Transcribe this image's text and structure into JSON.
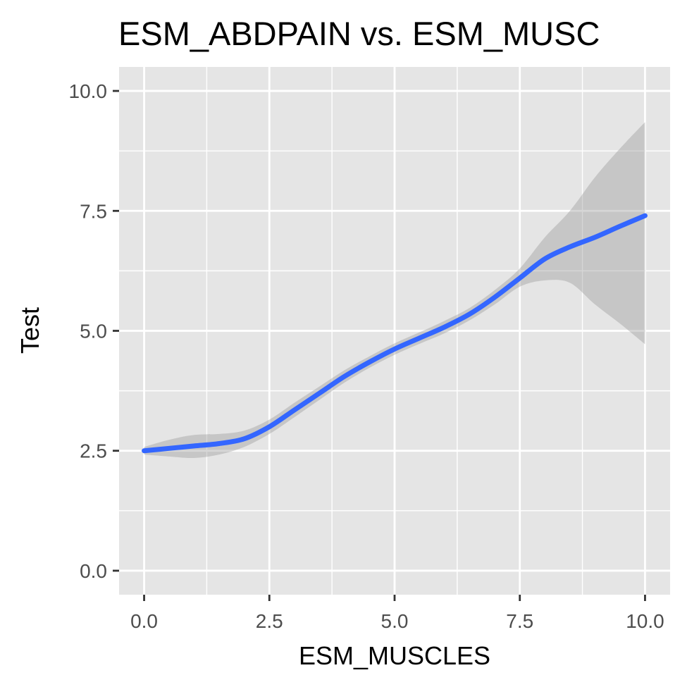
{
  "chart_data": {
    "type": "line",
    "title": "ESM_ABDPAIN vs. ESM_MUSC",
    "xlabel": "ESM_MUSCLES",
    "ylabel": "Test",
    "xlim": [
      -0.5,
      10.5
    ],
    "ylim": [
      -0.5,
      10.5
    ],
    "x_ticks": [
      0.0,
      2.5,
      5.0,
      7.5,
      10.0
    ],
    "x_tick_labels": [
      "0.0",
      "2.5",
      "5.0",
      "7.5",
      "10.0"
    ],
    "y_ticks": [
      0.0,
      2.5,
      5.0,
      7.5,
      10.0
    ],
    "y_tick_labels": [
      "0.0",
      "2.5",
      "5.0",
      "7.5",
      "10.0"
    ],
    "grid": true,
    "legend": "none",
    "colors": {
      "panel": "#e5e5e5",
      "grid": "#ffffff",
      "line": "#3366ff",
      "ribbon": "#999999"
    },
    "series": [
      {
        "x": [
          0.0,
          0.5,
          1.0,
          1.5,
          2.0,
          2.5,
          3.0,
          3.5,
          4.0,
          4.5,
          5.0,
          5.5,
          6.0,
          6.5,
          7.0,
          7.5,
          8.0,
          8.5,
          9.0,
          9.5,
          10.0
        ],
        "y": [
          2.5,
          2.55,
          2.6,
          2.65,
          2.75,
          3.0,
          3.35,
          3.7,
          4.05,
          4.35,
          4.62,
          4.85,
          5.08,
          5.35,
          5.7,
          6.1,
          6.5,
          6.75,
          6.95,
          7.18,
          7.4
        ],
        "ymin": [
          2.42,
          2.38,
          2.35,
          2.42,
          2.58,
          2.85,
          3.2,
          3.56,
          3.92,
          4.23,
          4.5,
          4.73,
          4.95,
          5.22,
          5.55,
          5.92,
          6.05,
          6.0,
          5.55,
          5.15,
          4.72
        ],
        "ymax": [
          2.58,
          2.73,
          2.83,
          2.85,
          2.92,
          3.15,
          3.5,
          3.84,
          4.18,
          4.47,
          4.74,
          4.97,
          5.21,
          5.48,
          5.85,
          6.3,
          6.95,
          7.5,
          8.2,
          8.8,
          9.35
        ]
      }
    ]
  }
}
